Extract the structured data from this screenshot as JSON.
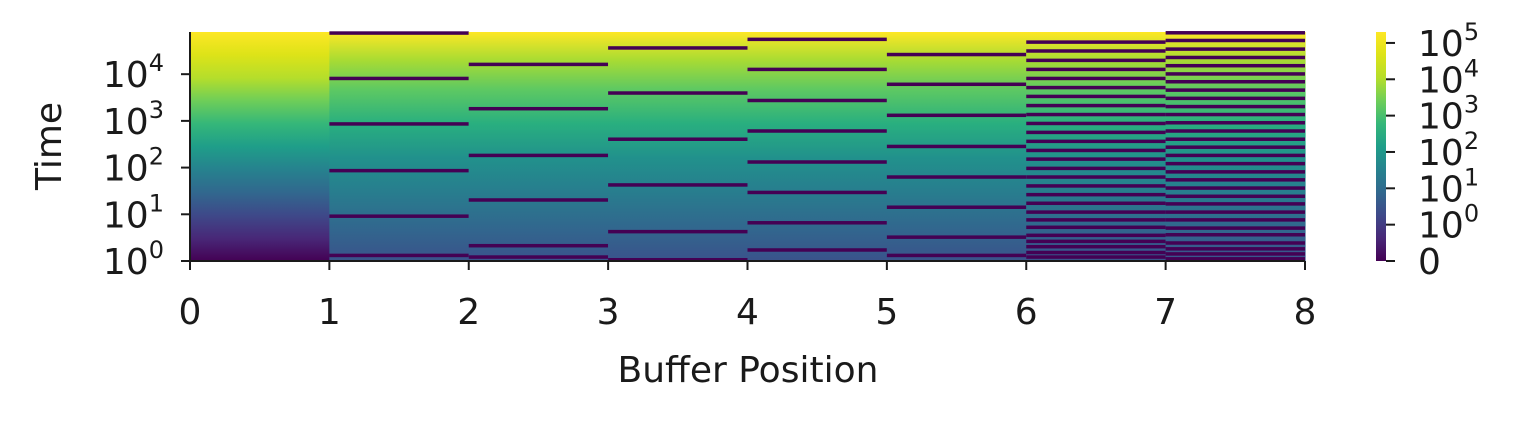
{
  "chart_data": {
    "type": "heatmap",
    "xlabel": "Buffer Position",
    "ylabel": "Time",
    "x_ticks": [
      "0",
      "1",
      "2",
      "3",
      "4",
      "5",
      "6",
      "7",
      "8"
    ],
    "xlim": [
      0,
      8
    ],
    "y_scale": "log",
    "y_ticks": [
      {
        "base": "10",
        "exp": "0",
        "value": 1
      },
      {
        "base": "10",
        "exp": "1",
        "value": 10
      },
      {
        "base": "10",
        "exp": "2",
        "value": 100
      },
      {
        "base": "10",
        "exp": "3",
        "value": 1000
      },
      {
        "base": "10",
        "exp": "4",
        "value": 10000
      }
    ],
    "ylim": [
      1,
      80000
    ],
    "colormap": "viridis",
    "colorbar": {
      "scale": "symlog",
      "range": [
        0,
        200000
      ],
      "ticks": [
        {
          "base": "0",
          "exp": "",
          "value": 0
        },
        {
          "base": "10",
          "exp": "0",
          "value": 1
        },
        {
          "base": "10",
          "exp": "1",
          "value": 10
        },
        {
          "base": "10",
          "exp": "2",
          "value": 100
        },
        {
          "base": "10",
          "exp": "3",
          "value": 1000
        },
        {
          "base": "10",
          "exp": "4",
          "value": 10000
        },
        {
          "base": "10",
          "exp": "5",
          "value": 100000
        }
      ]
    },
    "columns": [
      {
        "position": 0,
        "reset_times": []
      },
      {
        "position": 1,
        "reset_times": [
          1.3,
          9,
          85,
          850,
          8000,
          75000
        ]
      },
      {
        "position": 2,
        "reset_times": [
          1.2,
          2.1,
          20,
          180,
          1800,
          16000
        ]
      },
      {
        "position": 3,
        "reset_times": [
          1.05,
          4.2,
          42,
          400,
          3900,
          36000
        ]
      },
      {
        "position": 4,
        "reset_times": [
          1.7,
          6.5,
          29,
          130,
          600,
          2700,
          12500,
          55000
        ]
      },
      {
        "position": 5,
        "reset_times": [
          1.3,
          3.2,
          14,
          62,
          280,
          1300,
          6000,
          26000
        ]
      },
      {
        "position": 6,
        "reset_times": [
          1.2,
          1.5,
          2,
          2.6,
          3.5,
          5.2,
          7.5,
          11,
          17,
          26,
          40,
          62,
          95,
          150,
          230,
          360,
          560,
          870,
          1350,
          2100,
          3300,
          5100,
          8000,
          12500,
          19500,
          31000,
          48000
        ]
      },
      {
        "position": 7,
        "reset_times": [
          1.1,
          1.4,
          1.8,
          2.4,
          3.6,
          5,
          7.5,
          11,
          16.5,
          24,
          36,
          54,
          80,
          120,
          180,
          270,
          400,
          600,
          900,
          1350,
          2000,
          3000,
          4500,
          6800,
          10000,
          15000,
          22500,
          34000,
          52000,
          76000
        ]
      }
    ]
  }
}
